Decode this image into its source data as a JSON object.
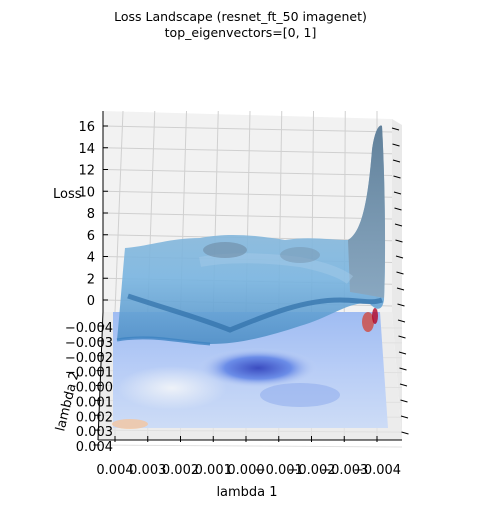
{
  "chart_data": {
    "type": "surface",
    "title_line1": "Loss Landscape (resnet_ft_50 imagenet)",
    "title_line2": "top_eigenvectors=[0, 1]",
    "xlabel": "lambda 1",
    "ylabel": "lambda 2",
    "zlabel": "Loss",
    "x_ticks": [
      "0.004",
      "0.003",
      "0.002",
      "0.001",
      "0.000",
      "−0.001",
      "−0.002",
      "−0.003",
      "−0.004"
    ],
    "y_ticks": [
      "−0.004",
      "−0.003",
      "−0.002",
      "−0.001",
      "0.000",
      "0.001",
      "0.002",
      "0.003",
      "0.004"
    ],
    "z_ticks": [
      "0",
      "2",
      "4",
      "6",
      "8",
      "10",
      "12",
      "14",
      "16"
    ],
    "xlim": [
      -0.004,
      0.004
    ],
    "ylim": [
      -0.004,
      0.004
    ],
    "zlim": [
      0,
      16
    ],
    "grid": true,
    "contour_colormap": "coolwarm",
    "surface_color": "#6fa9d6",
    "surface_profile_back_edge": {
      "x": [
        0.004,
        0.003,
        0.002,
        0.001,
        0.0,
        -0.001,
        -0.002,
        -0.003,
        -0.004
      ],
      "loss": [
        5.5,
        6.0,
        6.5,
        6.7,
        7.0,
        6.5,
        6.3,
        5.8,
        16.5
      ]
    }
  }
}
